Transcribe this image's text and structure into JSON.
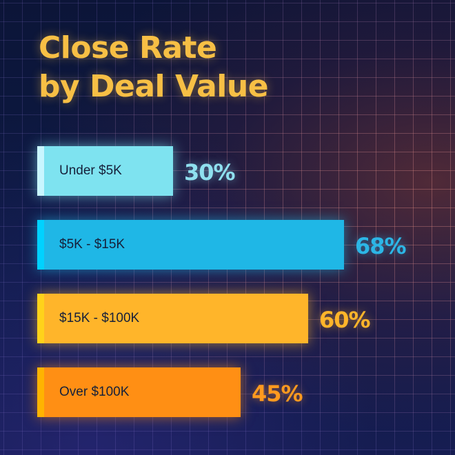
{
  "title_lines": [
    "Close Rate",
    "by Deal Value"
  ],
  "colors": {
    "title": "#f7bf45",
    "bars": [
      "#7ee3f0",
      "#1fb7e6",
      "#ffb52a",
      "#ff8f14"
    ],
    "edges": [
      "#c8f6ff",
      "#00d2ff",
      "#ffd21a",
      "#ffb300"
    ],
    "labels": [
      "#8fe0ef",
      "#2cb6e6",
      "#ffb52a",
      "#ff9a1f"
    ]
  },
  "chart_data": {
    "type": "bar",
    "orientation": "horizontal",
    "title": "Close Rate by Deal Value",
    "categories": [
      "Under $5K",
      "$5K - $15K",
      "$15K - $100K",
      "Over $100K"
    ],
    "values": [
      30,
      68,
      60,
      45
    ],
    "value_labels": [
      "30%",
      "68%",
      "60%",
      "45%"
    ],
    "unit": "%",
    "xlim": [
      0,
      100
    ],
    "grid": true,
    "legend": "none"
  }
}
